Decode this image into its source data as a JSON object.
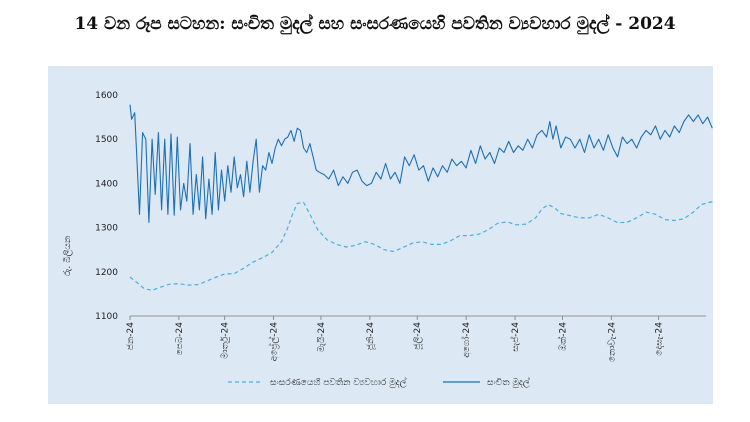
{
  "chart_data": {
    "type": "line",
    "title": "14 වන රූප සටහන: සංචිත මුදල් සහ සංසරණයෙහි පවතින ව්‍යවහාර මුදල් - 2024",
    "ylabel": "රු. බිලියන",
    "xlabel": "",
    "ylim": [
      1100,
      1600
    ],
    "yticks": [
      1100,
      1200,
      1300,
      1400,
      1500,
      1600
    ],
    "x_range": [
      0,
      365
    ],
    "x_ticks": [
      {
        "label": "ජන-24",
        "day": 0
      },
      {
        "label": "පෙබ-24",
        "day": 31
      },
      {
        "label": "මාර්තු-24",
        "day": 60
      },
      {
        "label": "අප්‍රේල්-24",
        "day": 91
      },
      {
        "label": "මැයි-24",
        "day": 121
      },
      {
        "label": "ජූනි-24",
        "day": 152
      },
      {
        "label": "ජූලි-24",
        "day": 182
      },
      {
        "label": "අගෝ-24",
        "day": 213
      },
      {
        "label": "සැප්-24",
        "day": 244
      },
      {
        "label": "ඔක්-24",
        "day": 274
      },
      {
        "label": "නොවැ-24",
        "day": 305
      },
      {
        "label": "දෙසැ-24",
        "day": 335
      }
    ],
    "series": [
      {
        "name": "සංසරණයෙහි පවතින ව්‍යවහාර මුදල්",
        "color": "#4aaee0",
        "dash": true,
        "points": [
          [
            0,
            1188
          ],
          [
            4,
            1177
          ],
          [
            9,
            1162
          ],
          [
            14,
            1158
          ],
          [
            19,
            1165
          ],
          [
            25,
            1172
          ],
          [
            31,
            1173
          ],
          [
            37,
            1170
          ],
          [
            43,
            1171
          ],
          [
            48,
            1178
          ],
          [
            54,
            1187
          ],
          [
            60,
            1195
          ],
          [
            66,
            1196
          ],
          [
            72,
            1208
          ],
          [
            78,
            1222
          ],
          [
            84,
            1232
          ],
          [
            90,
            1244
          ],
          [
            96,
            1268
          ],
          [
            100,
            1300
          ],
          [
            103,
            1330
          ],
          [
            106,
            1355
          ],
          [
            110,
            1357
          ],
          [
            114,
            1330
          ],
          [
            119,
            1295
          ],
          [
            125,
            1272
          ],
          [
            131,
            1262
          ],
          [
            137,
            1256
          ],
          [
            143,
            1260
          ],
          [
            149,
            1268
          ],
          [
            155,
            1262
          ],
          [
            161,
            1250
          ],
          [
            167,
            1246
          ],
          [
            173,
            1255
          ],
          [
            179,
            1265
          ],
          [
            185,
            1268
          ],
          [
            191,
            1262
          ],
          [
            197,
            1262
          ],
          [
            203,
            1270
          ],
          [
            209,
            1282
          ],
          [
            215,
            1282
          ],
          [
            221,
            1285
          ],
          [
            227,
            1295
          ],
          [
            233,
            1310
          ],
          [
            239,
            1313
          ],
          [
            245,
            1306
          ],
          [
            251,
            1308
          ],
          [
            257,
            1322
          ],
          [
            261,
            1342
          ],
          [
            265,
            1352
          ],
          [
            269,
            1345
          ],
          [
            273,
            1332
          ],
          [
            279,
            1327
          ],
          [
            285,
            1322
          ],
          [
            291,
            1322
          ],
          [
            297,
            1330
          ],
          [
            303,
            1322
          ],
          [
            309,
            1311
          ],
          [
            315,
            1312
          ],
          [
            321,
            1322
          ],
          [
            327,
            1335
          ],
          [
            333,
            1330
          ],
          [
            339,
            1318
          ],
          [
            345,
            1316
          ],
          [
            351,
            1320
          ],
          [
            357,
            1335
          ],
          [
            362,
            1352
          ],
          [
            368,
            1358
          ],
          [
            374,
            1360
          ]
        ]
      },
      {
        "name": "සංචිත මුදල්",
        "color": "#1e6fb5",
        "dash": false,
        "points": [
          [
            0,
            1578
          ],
          [
            1,
            1545
          ],
          [
            3,
            1560
          ],
          [
            6,
            1330
          ],
          [
            8,
            1515
          ],
          [
            10,
            1500
          ],
          [
            12,
            1312
          ],
          [
            14,
            1500
          ],
          [
            16,
            1375
          ],
          [
            18,
            1515
          ],
          [
            20,
            1340
          ],
          [
            22,
            1500
          ],
          [
            24,
            1330
          ],
          [
            26,
            1512
          ],
          [
            28,
            1328
          ],
          [
            30,
            1505
          ],
          [
            32,
            1340
          ],
          [
            34,
            1400
          ],
          [
            36,
            1360
          ],
          [
            38,
            1490
          ],
          [
            40,
            1330
          ],
          [
            42,
            1420
          ],
          [
            44,
            1340
          ],
          [
            46,
            1460
          ],
          [
            48,
            1320
          ],
          [
            50,
            1410
          ],
          [
            52,
            1330
          ],
          [
            54,
            1470
          ],
          [
            56,
            1340
          ],
          [
            58,
            1430
          ],
          [
            60,
            1360
          ],
          [
            62,
            1440
          ],
          [
            64,
            1380
          ],
          [
            66,
            1460
          ],
          [
            68,
            1390
          ],
          [
            70,
            1420
          ],
          [
            72,
            1370
          ],
          [
            74,
            1450
          ],
          [
            76,
            1380
          ],
          [
            78,
            1450
          ],
          [
            80,
            1500
          ],
          [
            82,
            1380
          ],
          [
            84,
            1440
          ],
          [
            86,
            1430
          ],
          [
            88,
            1470
          ],
          [
            90,
            1445
          ],
          [
            92,
            1480
          ],
          [
            94,
            1500
          ],
          [
            96,
            1485
          ],
          [
            98,
            1500
          ],
          [
            100,
            1505
          ],
          [
            102,
            1520
          ],
          [
            104,
            1495
          ],
          [
            106,
            1525
          ],
          [
            108,
            1520
          ],
          [
            110,
            1480
          ],
          [
            112,
            1470
          ],
          [
            114,
            1490
          ],
          [
            116,
            1460
          ],
          [
            118,
            1430
          ],
          [
            120,
            1425
          ],
          [
            123,
            1420
          ],
          [
            126,
            1410
          ],
          [
            129,
            1430
          ],
          [
            132,
            1395
          ],
          [
            135,
            1415
          ],
          [
            138,
            1400
          ],
          [
            141,
            1425
          ],
          [
            144,
            1430
          ],
          [
            147,
            1405
          ],
          [
            150,
            1395
          ],
          [
            153,
            1400
          ],
          [
            156,
            1425
          ],
          [
            159,
            1410
          ],
          [
            162,
            1445
          ],
          [
            165,
            1410
          ],
          [
            168,
            1425
          ],
          [
            171,
            1400
          ],
          [
            174,
            1460
          ],
          [
            177,
            1440
          ],
          [
            180,
            1465
          ],
          [
            183,
            1430
          ],
          [
            186,
            1440
          ],
          [
            189,
            1405
          ],
          [
            192,
            1435
          ],
          [
            195,
            1415
          ],
          [
            198,
            1440
          ],
          [
            201,
            1425
          ],
          [
            204,
            1455
          ],
          [
            207,
            1440
          ],
          [
            210,
            1450
          ],
          [
            213,
            1435
          ],
          [
            216,
            1475
          ],
          [
            219,
            1445
          ],
          [
            222,
            1485
          ],
          [
            225,
            1455
          ],
          [
            228,
            1470
          ],
          [
            231,
            1445
          ],
          [
            234,
            1480
          ],
          [
            237,
            1470
          ],
          [
            240,
            1495
          ],
          [
            243,
            1470
          ],
          [
            246,
            1485
          ],
          [
            249,
            1475
          ],
          [
            252,
            1500
          ],
          [
            255,
            1480
          ],
          [
            258,
            1510
          ],
          [
            261,
            1520
          ],
          [
            264,
            1505
          ],
          [
            266,
            1540
          ],
          [
            268,
            1500
          ],
          [
            270,
            1530
          ],
          [
            273,
            1480
          ],
          [
            276,
            1505
          ],
          [
            279,
            1500
          ],
          [
            282,
            1480
          ],
          [
            285,
            1500
          ],
          [
            288,
            1470
          ],
          [
            291,
            1510
          ],
          [
            294,
            1480
          ],
          [
            297,
            1500
          ],
          [
            300,
            1475
          ],
          [
            303,
            1510
          ],
          [
            306,
            1480
          ],
          [
            309,
            1460
          ],
          [
            312,
            1505
          ],
          [
            315,
            1490
          ],
          [
            318,
            1500
          ],
          [
            321,
            1480
          ],
          [
            324,
            1505
          ],
          [
            327,
            1520
          ],
          [
            330,
            1510
          ],
          [
            333,
            1530
          ],
          [
            336,
            1500
          ],
          [
            339,
            1520
          ],
          [
            342,
            1505
          ],
          [
            345,
            1530
          ],
          [
            348,
            1515
          ],
          [
            351,
            1540
          ],
          [
            354,
            1555
          ],
          [
            357,
            1540
          ],
          [
            360,
            1555
          ],
          [
            363,
            1535
          ],
          [
            366,
            1550
          ],
          [
            369,
            1525
          ]
        ]
      }
    ],
    "legend": {
      "position": "bottom"
    }
  }
}
